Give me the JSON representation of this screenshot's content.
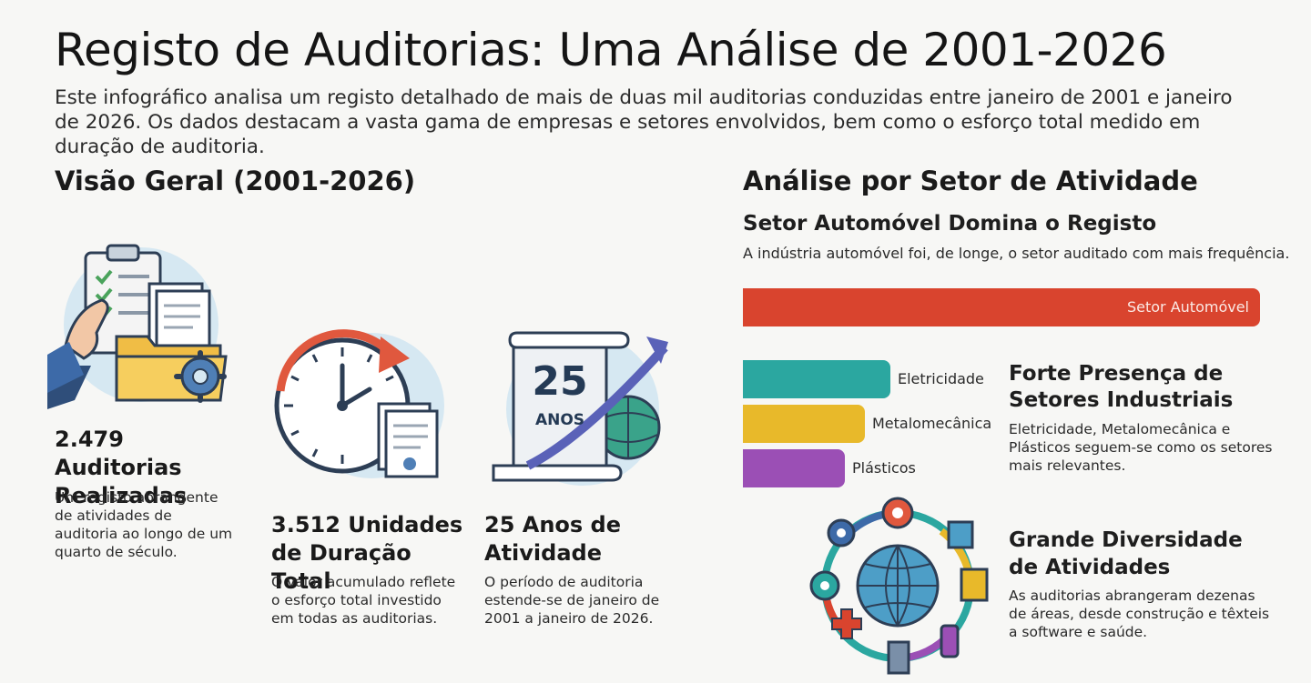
{
  "header": {
    "title": "Registo de Auditorias: Uma Análise de 2001-2026",
    "intro": "Este infográfico analisa um registo detalhado de mais de duas mil auditorias conduzidas entre janeiro de 2001 e janeiro de 2026. Os dados destacam a vasta gama de empresas e setores envolvidos, bem como o esforço total medido em duração de auditoria."
  },
  "overview": {
    "heading": "Visão Geral (2001-2026)",
    "stats": [
      {
        "title": "2.479 Auditorias Realizadas",
        "desc": "Um registo abrangente de atividades de auditoria ao longo de um quarto de século."
      },
      {
        "title": "3.512 Unidades de Duração Total",
        "desc": "O valor acumulado reflete o esforço total investido em todas as auditorias."
      },
      {
        "title": "25 Anos de Atividade",
        "desc": "O período de auditoria estende-se de janeiro de 2001 a janeiro de 2026."
      }
    ],
    "calendar_icon": {
      "number": "25",
      "word": "ANOS"
    }
  },
  "sectors": {
    "heading": "Análise por Setor de Atividade",
    "auto_title": "Setor Automóvel Domina o Registo",
    "auto_desc": "A indústria automóvel foi, de longe, o setor auditado com mais frequência.",
    "bars": [
      {
        "label": "Setor Automóvel",
        "relative": 1.0,
        "color": "#d9442e"
      },
      {
        "label": "Eletricidade",
        "relative": 0.285,
        "color": "#2ba7a0"
      },
      {
        "label": "Metalomecânica",
        "relative": 0.236,
        "color": "#e8b92a"
      },
      {
        "label": "Plásticos",
        "relative": 0.197,
        "color": "#9b4fb5"
      }
    ],
    "industrial": {
      "title": "Forte Presença de Setores Industriais",
      "desc": "Eletricidade, Metalomecânica e Plásticos seguem-se como os setores mais relevantes."
    },
    "diversity": {
      "title": "Grande Diversidade de Atividades",
      "desc": "As auditorias abrangeram dezenas de áreas, desde construção e têxteis a software e saúde."
    }
  }
}
